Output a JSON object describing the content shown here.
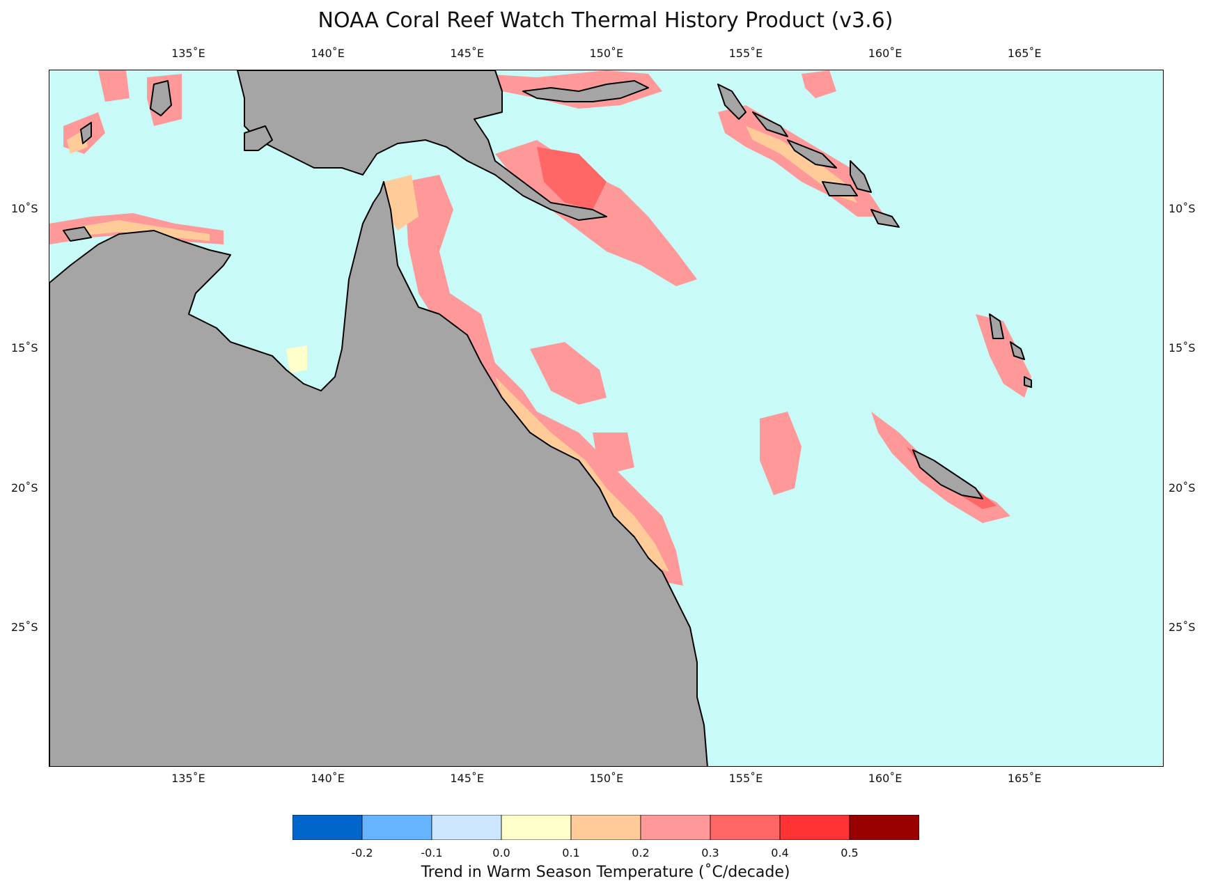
{
  "title": "NOAA Coral Reef Watch Thermal History Product (v3.6)",
  "map": {
    "lon_range": [
      130,
      170
    ],
    "lat_range": [
      -30,
      -5
    ],
    "lon_ticks": [
      "135˚E",
      "140˚E",
      "145˚E",
      "150˚E",
      "155˚E",
      "160˚E",
      "165˚E"
    ],
    "lon_tick_values": [
      135,
      140,
      145,
      150,
      155,
      160,
      165
    ],
    "lat_ticks": [
      "10˚S",
      "15˚S",
      "20˚S",
      "25˚S"
    ],
    "lat_tick_values": [
      -10,
      -15,
      -20,
      -25
    ],
    "colors": {
      "ocean": "#c8faf8",
      "land": "#a5a5a5",
      "coast": "#000000"
    }
  },
  "colorbar": {
    "title": "Trend in Warm Season Temperature (˚C/decade)",
    "labels": [
      "-0.2",
      "-0.1",
      "0.0",
      "0.1",
      "0.2",
      "0.3",
      "0.4",
      "0.5"
    ],
    "bins": [
      {
        "color": "#0066cc"
      },
      {
        "color": "#66b3ff"
      },
      {
        "color": "#cce6ff"
      },
      {
        "color": "#ffffcc"
      },
      {
        "color": "#ffcc99"
      },
      {
        "color": "#ff9999"
      },
      {
        "color": "#ff6666"
      },
      {
        "color": "#ff3333"
      },
      {
        "color": "#990000"
      }
    ]
  }
}
